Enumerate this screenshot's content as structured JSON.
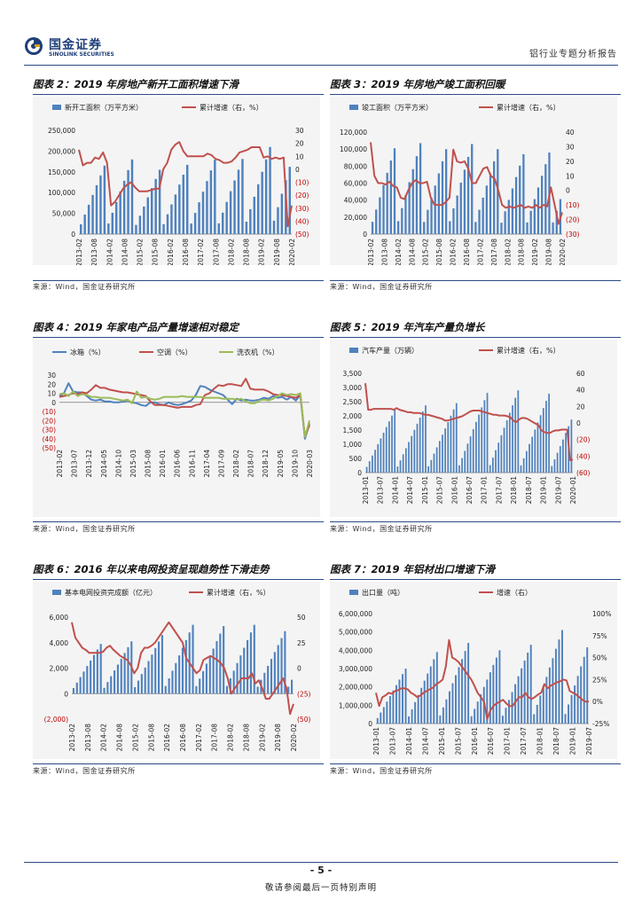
{
  "header": {
    "logo_cn": "国金证券",
    "logo_en": "SINOLINK SECURITIES",
    "report_title": "铝行业专题分析报告"
  },
  "footer": {
    "page_number": "- 5 -",
    "disclaimer": "敬请参阅最后一页特别声明"
  },
  "source_text": "来源：Wind，国金证券研究所",
  "colors": {
    "bar": "#4f81bd",
    "line_red": "#c0504d",
    "line_blue": "#4f81bd",
    "line_green": "#9bbb59"
  },
  "charts": [
    {
      "id": 2,
      "title": "图表 2：2019 年房地产新开工面积增速下滑",
      "chart_data": {
        "type": "bar+line",
        "legend": [
          "新开工面积（万平方米）",
          "累计增速（右，%）"
        ],
        "y_left": {
          "min": 0,
          "max": 250000,
          "ticks": [
            "250,000",
            "200,000",
            "150,000",
            "100,000",
            "50,000",
            "0"
          ]
        },
        "y_right": {
          "min": -50,
          "max": 30,
          "ticks": [
            "30",
            "20",
            "10",
            "0",
            "(10)",
            "(20)",
            "(30)",
            "(40)",
            "(50)"
          ]
        },
        "x_labels": [
          "2013-02",
          "2013-08",
          "2014-02",
          "2014-08",
          "2015-02",
          "2015-08",
          "2016-02",
          "2016-08",
          "2017-02",
          "2017-08",
          "2018-02",
          "2018-08",
          "2019-02",
          "2019-08",
          "2020-02"
        ],
        "year_peaks": [
          165000,
          180000,
          155000,
          167000,
          179000,
          181000,
          210000,
          227000
        ],
        "line": [
          15,
          3,
          5,
          5,
          9,
          8,
          13,
          5,
          -28,
          -25,
          -20,
          -15,
          -12,
          -10,
          -14,
          -17,
          -17,
          -17,
          -16,
          -15,
          -15,
          0,
          5,
          15,
          19,
          21,
          14,
          10,
          10,
          10,
          10,
          10,
          12,
          11,
          8,
          7,
          5,
          5,
          6,
          9,
          13,
          14,
          15,
          17,
          17,
          17,
          9,
          10,
          8,
          9,
          8,
          9,
          -44,
          -28
        ]
      }
    },
    {
      "id": 3,
      "title": "图表 3：2019 年房地产竣工面积回暖",
      "chart_data": {
        "type": "bar+line",
        "legend": [
          "竣工面积（万平方米）",
          "累计增速（右，%）"
        ],
        "y_left": {
          "min": 0,
          "max": 120000,
          "ticks": [
            "120,000",
            "100,000",
            "80,000",
            "60,000",
            "40,000",
            "20,000",
            "0"
          ]
        },
        "y_right": {
          "min": -30,
          "max": 40,
          "ticks": [
            "40",
            "30",
            "20",
            "10",
            "0",
            "(10)",
            "(20)",
            "(30)"
          ]
        },
        "x_labels": [
          "2013-02",
          "2013-08",
          "2014-02",
          "2014-08",
          "2015-02",
          "2015-08",
          "2016-02",
          "2016-08",
          "2017-02",
          "2017-08",
          "2018-02",
          "2018-08",
          "2019-02",
          "2019-08",
          "2020-02"
        ],
        "year_peaks": [
          101000,
          107000,
          100000,
          106000,
          100000,
          94000,
          96000,
          96000
        ],
        "line": [
          33,
          10,
          5,
          5,
          4,
          6,
          3,
          2,
          -5,
          -6,
          0,
          5,
          7,
          5,
          5,
          6,
          -5,
          -10,
          -10,
          -10,
          -8,
          -5,
          28,
          20,
          19,
          20,
          15,
          5,
          5,
          10,
          15,
          16,
          10,
          8,
          0,
          -10,
          -12,
          -11,
          -12,
          -11,
          -10,
          -12,
          -11,
          -12,
          -10,
          -12,
          -10,
          -11,
          2,
          -10,
          -23,
          -15
        ]
      }
    },
    {
      "id": 4,
      "title": "图表 4：2019 年家电产品产量增速相对稳定",
      "chart_data": {
        "type": "line",
        "legend": [
          "冰箱（%）",
          "空调（%）",
          "洗衣机（%）"
        ],
        "y": {
          "min": -50,
          "max": 30,
          "ticks": [
            "30",
            "20",
            "10",
            "0",
            "(10)",
            "(20)",
            "(30)",
            "(40)",
            "(50)"
          ]
        },
        "x_labels": [
          "2013-02",
          "2013-07",
          "2013-12",
          "2014-05",
          "2014-10",
          "2015-03",
          "2015-08",
          "2016-01",
          "2016-06",
          "2016-11",
          "2017-04",
          "2017-09",
          "2018-02",
          "2018-07",
          "2018-12",
          "2019-05",
          "2019-10",
          "2020-03"
        ],
        "series": [
          {
            "name": "冰箱",
            "values": [
              7,
              10,
              21,
              12,
              11,
              11,
              7,
              3,
              2,
              3,
              1,
              1,
              0,
              0,
              1,
              2,
              0,
              -1,
              -3,
              -4,
              0,
              0,
              -2,
              -3,
              0,
              -2,
              -3,
              -2,
              0,
              2,
              8,
              18,
              17,
              14,
              12,
              10,
              8,
              3,
              -2,
              4,
              2,
              3,
              2,
              2,
              3,
              5,
              4,
              7,
              5,
              6,
              3,
              6,
              2,
              8,
              -40,
              -23
            ]
          },
          {
            "name": "空调",
            "values": [
              6,
              7,
              8,
              10,
              9,
              11,
              10,
              14,
              19,
              16,
              16,
              14,
              13,
              12,
              11,
              11,
              10,
              9,
              8,
              7,
              1,
              -3,
              -3,
              -3,
              -4,
              -5,
              -6,
              -5,
              -5,
              -5,
              -3,
              -2,
              8,
              10,
              15,
              19,
              18,
              20,
              20,
              19,
              18,
              26,
              15,
              14,
              14,
              14,
              12,
              9,
              8,
              8,
              7,
              6,
              5,
              8,
              -38,
              -25
            ]
          },
          {
            "name": "洗衣机",
            "values": [
              9,
              10,
              7,
              12,
              7,
              9,
              8,
              6,
              6,
              5,
              5,
              5,
              4,
              3,
              2,
              3,
              -1,
              12,
              5,
              6,
              4,
              3,
              4,
              6,
              6,
              6,
              6,
              7,
              6,
              6,
              6,
              6,
              5,
              5,
              5,
              5,
              4,
              4,
              4,
              3,
              4,
              1,
              -1,
              -1,
              2,
              3,
              2,
              4,
              7,
              10,
              8,
              9,
              8,
              10,
              -38,
              -20
            ]
          }
        ]
      }
    },
    {
      "id": 5,
      "title": "图表 5：2019 年汽车产量负增长",
      "chart_data": {
        "type": "bar+line",
        "legend": [
          "汽车产量（万辆）",
          "累计增速（右，%）"
        ],
        "y_left": {
          "min": 0,
          "max": 3500,
          "ticks": [
            "3,500",
            "3,000",
            "2,500",
            "2,000",
            "1,500",
            "1,000",
            "500",
            "0"
          ]
        },
        "y_right": {
          "min": -60,
          "max": 60,
          "ticks": [
            "60",
            "40",
            "20",
            "0",
            "(20)",
            "(40)",
            "(60)"
          ]
        },
        "x_labels": [
          "2013-01",
          "2013-07",
          "2014-01",
          "2014-07",
          "2015-01",
          "2015-07",
          "2016-01",
          "2016-07",
          "2017-01",
          "2017-07",
          "2018-01",
          "2018-07",
          "2019-01",
          "2019-07",
          "2020-01"
        ],
        "year_peaks": [
          2210,
          2370,
          2450,
          2810,
          2900,
          2780,
          2570
        ],
        "line": [
          48,
          16,
          16,
          17,
          17,
          17,
          17,
          17,
          17,
          17,
          16,
          18,
          16,
          15,
          14,
          13,
          13,
          12,
          12,
          12,
          11,
          10,
          10,
          9,
          8,
          7,
          6,
          5,
          3,
          3,
          4,
          5,
          6,
          7,
          8,
          10,
          12,
          14,
          15,
          15,
          15,
          14,
          13,
          12,
          11,
          10,
          10,
          9,
          9,
          9,
          8,
          7,
          3,
          1,
          4,
          6,
          6,
          5,
          3,
          1,
          -1,
          -3,
          -9,
          -11,
          -12,
          -12,
          -10,
          -9,
          -9,
          -8,
          -8,
          -8,
          -45,
          -44
        ]
      }
    },
    {
      "id": 6,
      "title": "图表 6：2016 年以来电网投资呈现趋势性下滑走势",
      "chart_data": {
        "type": "bar+line",
        "legend": [
          "基本电网投资完成额（亿元）",
          "累计增速（右，%）"
        ],
        "y_left": {
          "min": -2000,
          "max": 6000,
          "ticks": [
            "6,000",
            "4,000",
            "2,000",
            "0",
            "(2,000)"
          ]
        },
        "y_right": {
          "min": -50,
          "max": 50,
          "ticks": [
            "50",
            "25",
            "0",
            "(25)",
            "(50)"
          ]
        },
        "x_labels": [
          "2013-02",
          "2013-08",
          "2014-02",
          "2014-08",
          "2015-02",
          "2015-08",
          "2016-02",
          "2016-08",
          "2017-02",
          "2017-08",
          "2018-02",
          "2018-08",
          "2019-02",
          "2019-08",
          "2020-02"
        ],
        "year_peaks": [
          3900,
          4100,
          4600,
          5400,
          5300,
          5400,
          4900
        ],
        "line": [
          45,
          30,
          25,
          20,
          18,
          15,
          15,
          15,
          15,
          16,
          20,
          22,
          18,
          15,
          12,
          10,
          8,
          3,
          -5,
          0,
          15,
          20,
          20,
          22,
          25,
          30,
          35,
          40,
          45,
          40,
          35,
          30,
          25,
          10,
          5,
          0,
          -5,
          -2,
          8,
          10,
          12,
          10,
          8,
          5,
          0,
          -10,
          -25,
          -20,
          -15,
          -10,
          -10,
          -10,
          -5,
          -15,
          -12,
          -20,
          -30,
          -30,
          -25,
          -20,
          -15,
          -10,
          -20,
          -45,
          -35
        ]
      }
    },
    {
      "id": 7,
      "title": "图表 7：2019 年铝材出口增速下滑",
      "chart_data": {
        "type": "bar+line",
        "legend": [
          "出口量（吨）",
          "增速（右）"
        ],
        "y_left": {
          "min": 0,
          "max": 6000000,
          "ticks": [
            "6,000,000",
            "5,000,000",
            "4,000,000",
            "3,000,000",
            "2,000,000",
            "1,000,000",
            "0"
          ]
        },
        "y_right": {
          "min": -25,
          "max": 100,
          "ticks": [
            "100%",
            "75%",
            "50%",
            "25%",
            "0%",
            "-25%"
          ]
        },
        "x_labels": [
          "2013-01",
          "2013-07",
          "2014-01",
          "2014-07",
          "2015-01",
          "2015-07",
          "2016-01",
          "2016-07",
          "2017-01",
          "2017-07",
          "2018-01",
          "2018-07",
          "2019-01",
          "2019-07"
        ],
        "year_peaks": [
          3000000,
          3900000,
          4400000,
          4000000,
          4300000,
          5100000,
          5200000
        ],
        "line": [
          10,
          -5,
          5,
          7,
          10,
          9,
          12,
          13,
          15,
          15,
          14,
          10,
          8,
          5,
          7,
          10,
          12,
          14,
          16,
          20,
          22,
          25,
          40,
          70,
          50,
          48,
          45,
          40,
          35,
          30,
          25,
          18,
          10,
          5,
          0,
          -20,
          -10,
          -5,
          -2,
          0,
          2,
          -2,
          -5,
          -5,
          0,
          5,
          5,
          10,
          5,
          3,
          5,
          8,
          10,
          20,
          15,
          18,
          20,
          22,
          23,
          25,
          24,
          12,
          10,
          8,
          5,
          2,
          0,
          0
        ]
      }
    }
  ]
}
